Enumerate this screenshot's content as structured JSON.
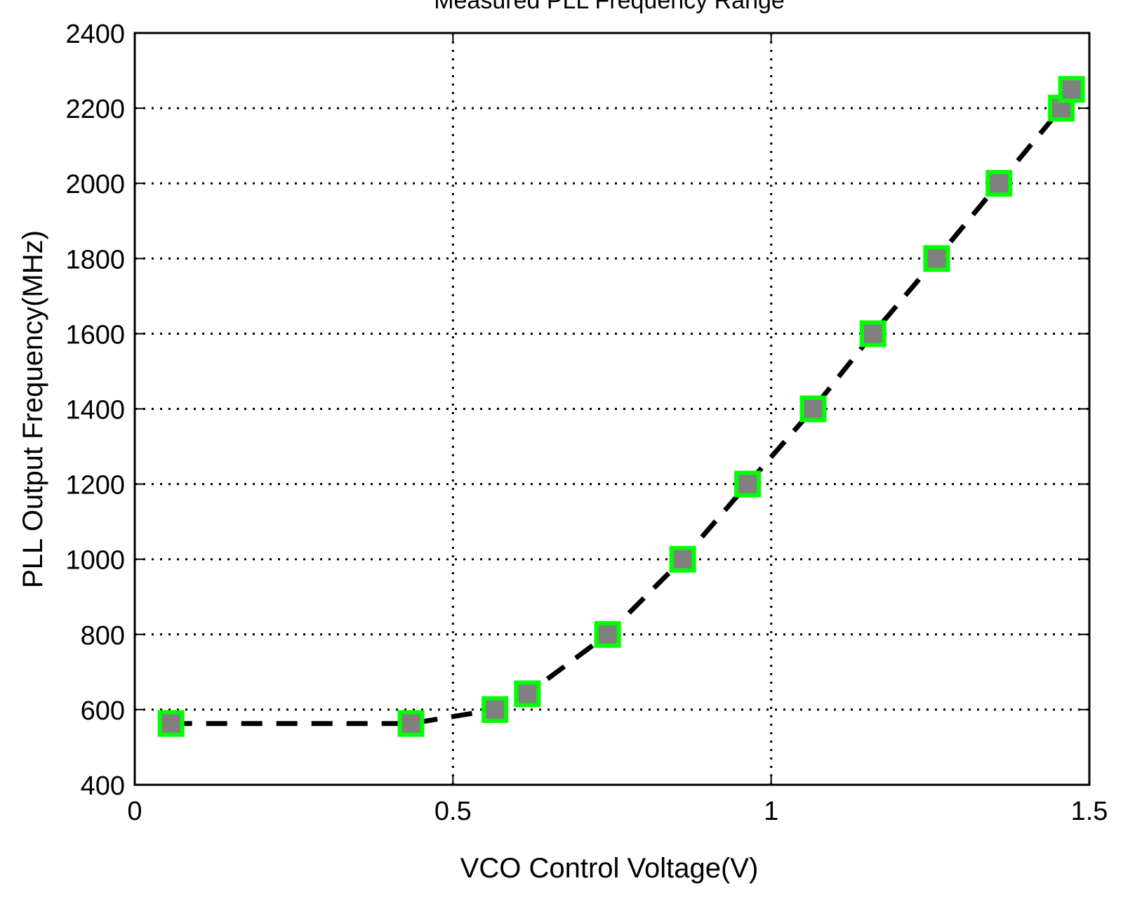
{
  "chart_data": {
    "type": "scatter",
    "title": "Measured PLL Frequency Range",
    "xlabel": "VCO Control Voltage(V)",
    "ylabel": "PLL Output Frequency(MHz)",
    "xlim": [
      0,
      1.5
    ],
    "ylim": [
      400,
      2400
    ],
    "xticks": [
      0,
      0.5,
      1,
      1.5
    ],
    "xtick_labels": [
      "0",
      "0.5",
      "1",
      "1.5"
    ],
    "yticks": [
      400,
      600,
      800,
      1000,
      1200,
      1400,
      1600,
      1800,
      2000,
      2200,
      2400
    ],
    "ytick_labels": [
      "400",
      "600",
      "800",
      "1000",
      "1200",
      "1400",
      "1600",
      "1800",
      "2000",
      "2200",
      "2400"
    ],
    "grid": true,
    "series": [
      {
        "marker": "square",
        "marker_face_color": "#808080",
        "marker_edge_color": "#00ff00",
        "line_style": "dashed",
        "line_color": "#000000",
        "x": [
          0.057,
          0.434,
          0.566,
          0.617,
          0.743,
          0.861,
          0.963,
          1.066,
          1.16,
          1.26,
          1.358,
          1.456,
          1.472
        ],
        "y": [
          563,
          563,
          600,
          642,
          800,
          1000,
          1200,
          1400,
          1600,
          1800,
          2000,
          2200,
          2250
        ]
      }
    ]
  }
}
